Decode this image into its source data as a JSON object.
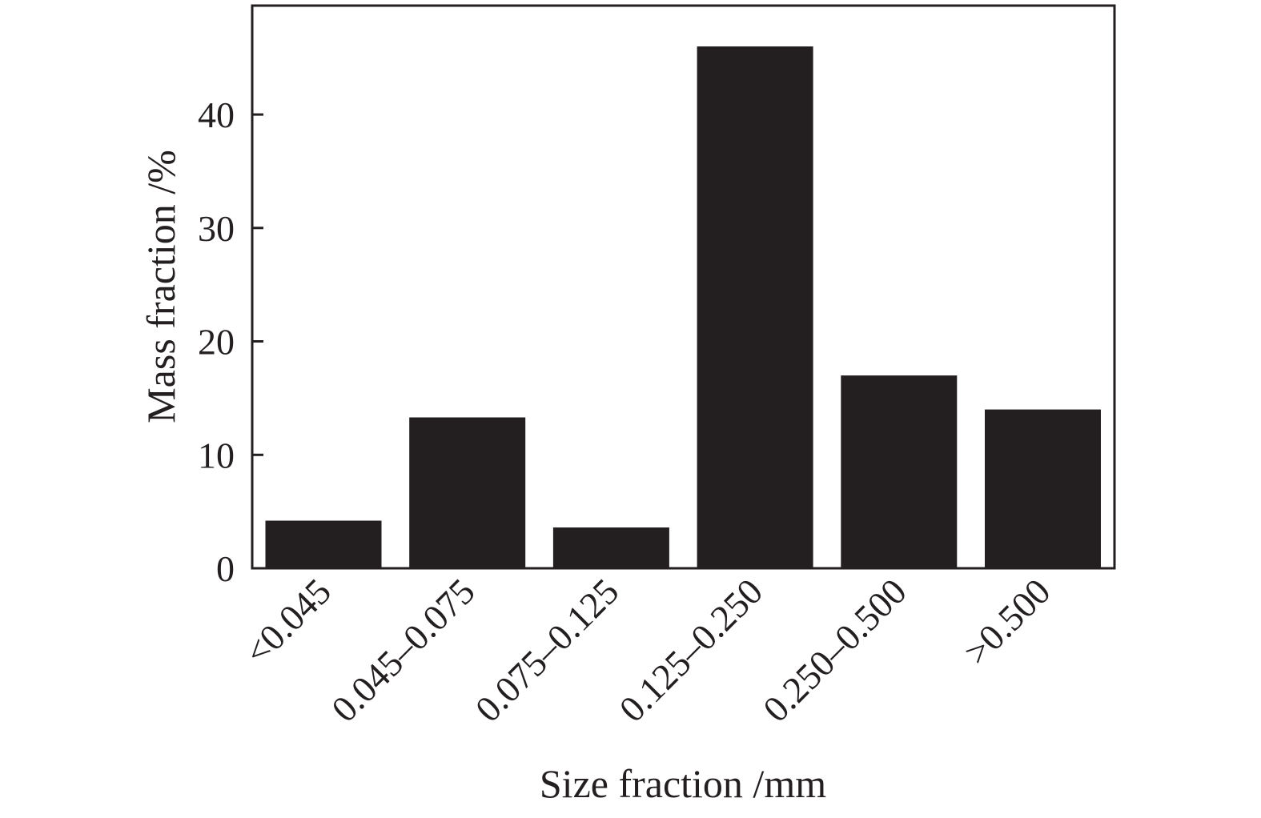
{
  "chart_data": {
    "type": "bar",
    "categories": [
      "<0.045",
      "0.045–0.075",
      "0.075–0.125",
      "0.125–0.250",
      "0.250–0.500",
      ">0.500"
    ],
    "values": [
      4.2,
      13.3,
      3.6,
      46.0,
      17.0,
      14.0
    ],
    "xlabel": "Size fraction /mm",
    "ylabel": "Mass fraction /%",
    "ylim": [
      0,
      49.6
    ],
    "yticks": [
      0,
      10,
      20,
      30,
      40
    ],
    "grid": false,
    "legend": "none",
    "bar_color": "#231f20"
  }
}
